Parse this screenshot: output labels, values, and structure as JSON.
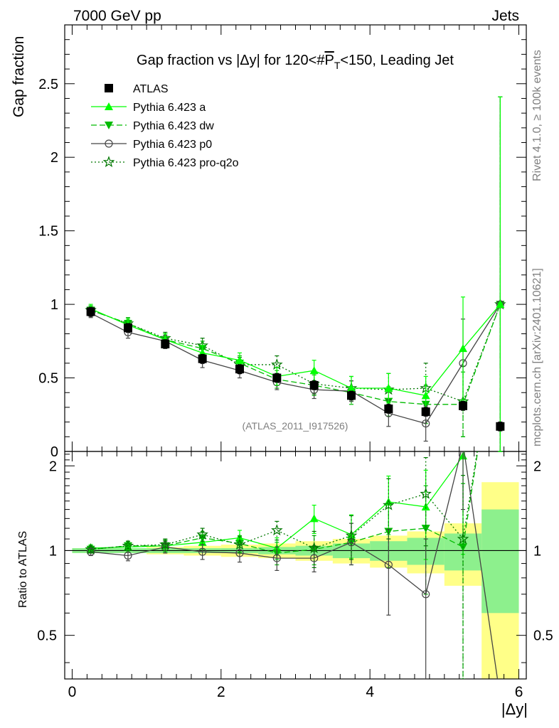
{
  "header": {
    "left": "7000 GeV pp",
    "right": "Jets"
  },
  "side_labels": {
    "rivet": "Rivet 4.1.0, ≥ 100k events",
    "mcplots": "mcplots.cern.ch [arXiv:2401.10621]"
  },
  "chart_data": [
    {
      "panel": "main",
      "type": "line",
      "title": "Gap fraction vs |Δy| for 120<#P_T<150, Leading Jet",
      "title_parts": {
        "prefix": "Gap fraction vs |Δy| for 120<#",
        "p": "P",
        "sub": "T",
        "suffix": "<150, Leading Jet"
      },
      "ylabel": "Gap fraction",
      "xlabel": "|Δy|",
      "xlim": [
        -0.1,
        6.1
      ],
      "ylim": [
        0,
        2.9
      ],
      "xticks": [
        0,
        2,
        4,
        6
      ],
      "yticks": [
        0,
        0.5,
        1,
        1.5,
        2,
        2.5
      ],
      "ytick_labels": [
        "0",
        "0.5",
        "1",
        "1.5",
        "2",
        "2.5"
      ],
      "watermark": "(ATLAS_2011_I917526)",
      "x": [
        0.25,
        0.75,
        1.25,
        1.75,
        2.25,
        2.75,
        3.25,
        3.75,
        4.25,
        4.75,
        5.25,
        5.75
      ],
      "series": [
        {
          "name": "ATLAS",
          "key": "atlas",
          "color": "#000000",
          "marker": "square",
          "line": "none",
          "values": [
            0.95,
            0.84,
            0.73,
            0.63,
            0.56,
            0.5,
            0.45,
            0.38,
            0.29,
            0.27,
            0.31,
            0.17
          ],
          "errors": [
            0.03,
            0.03,
            0.03,
            0.03,
            0.03,
            0.03,
            0.03,
            0.03,
            0.03,
            0.03,
            0.03,
            0.03
          ]
        },
        {
          "name": "Pythia 6.423 a",
          "key": "a",
          "color": "#00ff00",
          "marker": "triangle-up",
          "line": "solid",
          "values": [
            0.97,
            0.86,
            0.76,
            0.67,
            0.62,
            0.51,
            0.55,
            0.43,
            0.43,
            0.38,
            0.7,
            1.0
          ],
          "errors": [
            0.03,
            0.04,
            0.04,
            0.05,
            0.05,
            0.06,
            0.07,
            0.08,
            0.1,
            0.13,
            0.35,
            1.41
          ]
        },
        {
          "name": "Pythia 6.423 dw",
          "key": "dw",
          "color": "#00bb00",
          "marker": "triangle-down",
          "line": "dashed",
          "values": [
            0.96,
            0.87,
            0.76,
            0.7,
            0.6,
            0.49,
            0.45,
            0.4,
            0.34,
            0.32,
            0.32,
            1.0
          ],
          "errors": [
            0.03,
            0.04,
            0.04,
            0.05,
            0.05,
            0.06,
            0.07,
            0.08,
            0.1,
            0.13,
            0.22,
            1.41
          ]
        },
        {
          "name": "Pythia 6.423 p0",
          "key": "p0",
          "color": "#444444",
          "marker": "circle-open",
          "line": "solid",
          "values": [
            0.94,
            0.81,
            0.75,
            0.62,
            0.55,
            0.47,
            0.42,
            0.41,
            0.26,
            0.19,
            0.6,
            1.0
          ],
          "errors": [
            0.03,
            0.04,
            0.04,
            0.05,
            0.05,
            0.05,
            0.06,
            0.07,
            0.09,
            0.12,
            0.3,
            1.41
          ]
        },
        {
          "name": "Pythia 6.423 pro-q2o",
          "key": "q2o",
          "color": "#007700",
          "marker": "star-open",
          "line": "dotted",
          "values": [
            0.96,
            0.87,
            0.77,
            0.72,
            0.59,
            0.59,
            0.46,
            0.43,
            0.42,
            0.43,
            0.34,
            1.0
          ],
          "errors": [
            0.03,
            0.04,
            0.04,
            0.05,
            0.05,
            0.06,
            0.07,
            0.08,
            0.11,
            0.17,
            0.24,
            1.41
          ]
        }
      ]
    },
    {
      "panel": "ratio",
      "type": "line",
      "ylabel": "Ratio to ATLAS",
      "xlabel": "|Δy|",
      "xlim": [
        -0.1,
        6.1
      ],
      "ylim": [
        0.35,
        2.25
      ],
      "yticks": [
        0.5,
        1,
        2
      ],
      "ytick_labels": [
        "0.5",
        "1",
        "2"
      ],
      "xticks": [
        0,
        2,
        4,
        6
      ],
      "xtick_labels": [
        "0",
        "2",
        "4",
        "6"
      ],
      "x": [
        0.25,
        0.75,
        1.25,
        1.75,
        2.25,
        2.75,
        3.25,
        3.75,
        4.25,
        4.75,
        5.25,
        5.75
      ],
      "band_edges": [
        0,
        0.5,
        1.0,
        1.5,
        2.0,
        2.5,
        3.0,
        3.5,
        4.0,
        4.5,
        5.0,
        5.5,
        6.0
      ],
      "band_stat": [
        0.02,
        0.02,
        0.02,
        0.02,
        0.02,
        0.03,
        0.04,
        0.06,
        0.08,
        0.11,
        0.15,
        0.4
      ],
      "band_total": [
        0.02,
        0.02,
        0.03,
        0.04,
        0.05,
        0.06,
        0.08,
        0.1,
        0.13,
        0.17,
        0.25,
        0.75
      ],
      "series": [
        {
          "key": "a",
          "values": [
            1.02,
            1.03,
            1.04,
            1.07,
            1.11,
            1.02,
            1.3,
            1.14,
            1.49,
            1.43,
            2.17,
            null
          ],
          "errors": [
            0.03,
            0.04,
            0.05,
            0.06,
            0.07,
            0.09,
            0.15,
            0.2,
            0.35,
            0.5,
            1.2,
            null
          ]
        },
        {
          "key": "dw",
          "values": [
            1.01,
            1.04,
            1.04,
            1.11,
            1.06,
            0.98,
            1.01,
            1.07,
            1.17,
            1.2,
            1.03,
            null
          ],
          "errors": [
            0.03,
            0.04,
            0.05,
            0.06,
            0.07,
            0.09,
            0.12,
            0.18,
            0.3,
            0.5,
            0.7,
            null
          ]
        },
        {
          "key": "p0",
          "values": [
            0.99,
            0.96,
            1.03,
            0.99,
            0.98,
            0.94,
            0.94,
            1.07,
            0.89,
            0.7,
            2.4,
            null
          ],
          "errors": [
            0.03,
            0.04,
            0.05,
            0.06,
            0.07,
            0.09,
            0.1,
            0.18,
            0.3,
            0.4,
            1.0,
            null
          ]
        },
        {
          "key": "q2o",
          "values": [
            1.01,
            1.04,
            1.05,
            1.14,
            1.05,
            1.18,
            1.02,
            1.13,
            1.45,
            1.59,
            1.1,
            null
          ],
          "errors": [
            0.03,
            0.04,
            0.05,
            0.06,
            0.07,
            0.09,
            0.15,
            0.2,
            0.35,
            0.55,
            0.75,
            null
          ]
        }
      ]
    }
  ]
}
